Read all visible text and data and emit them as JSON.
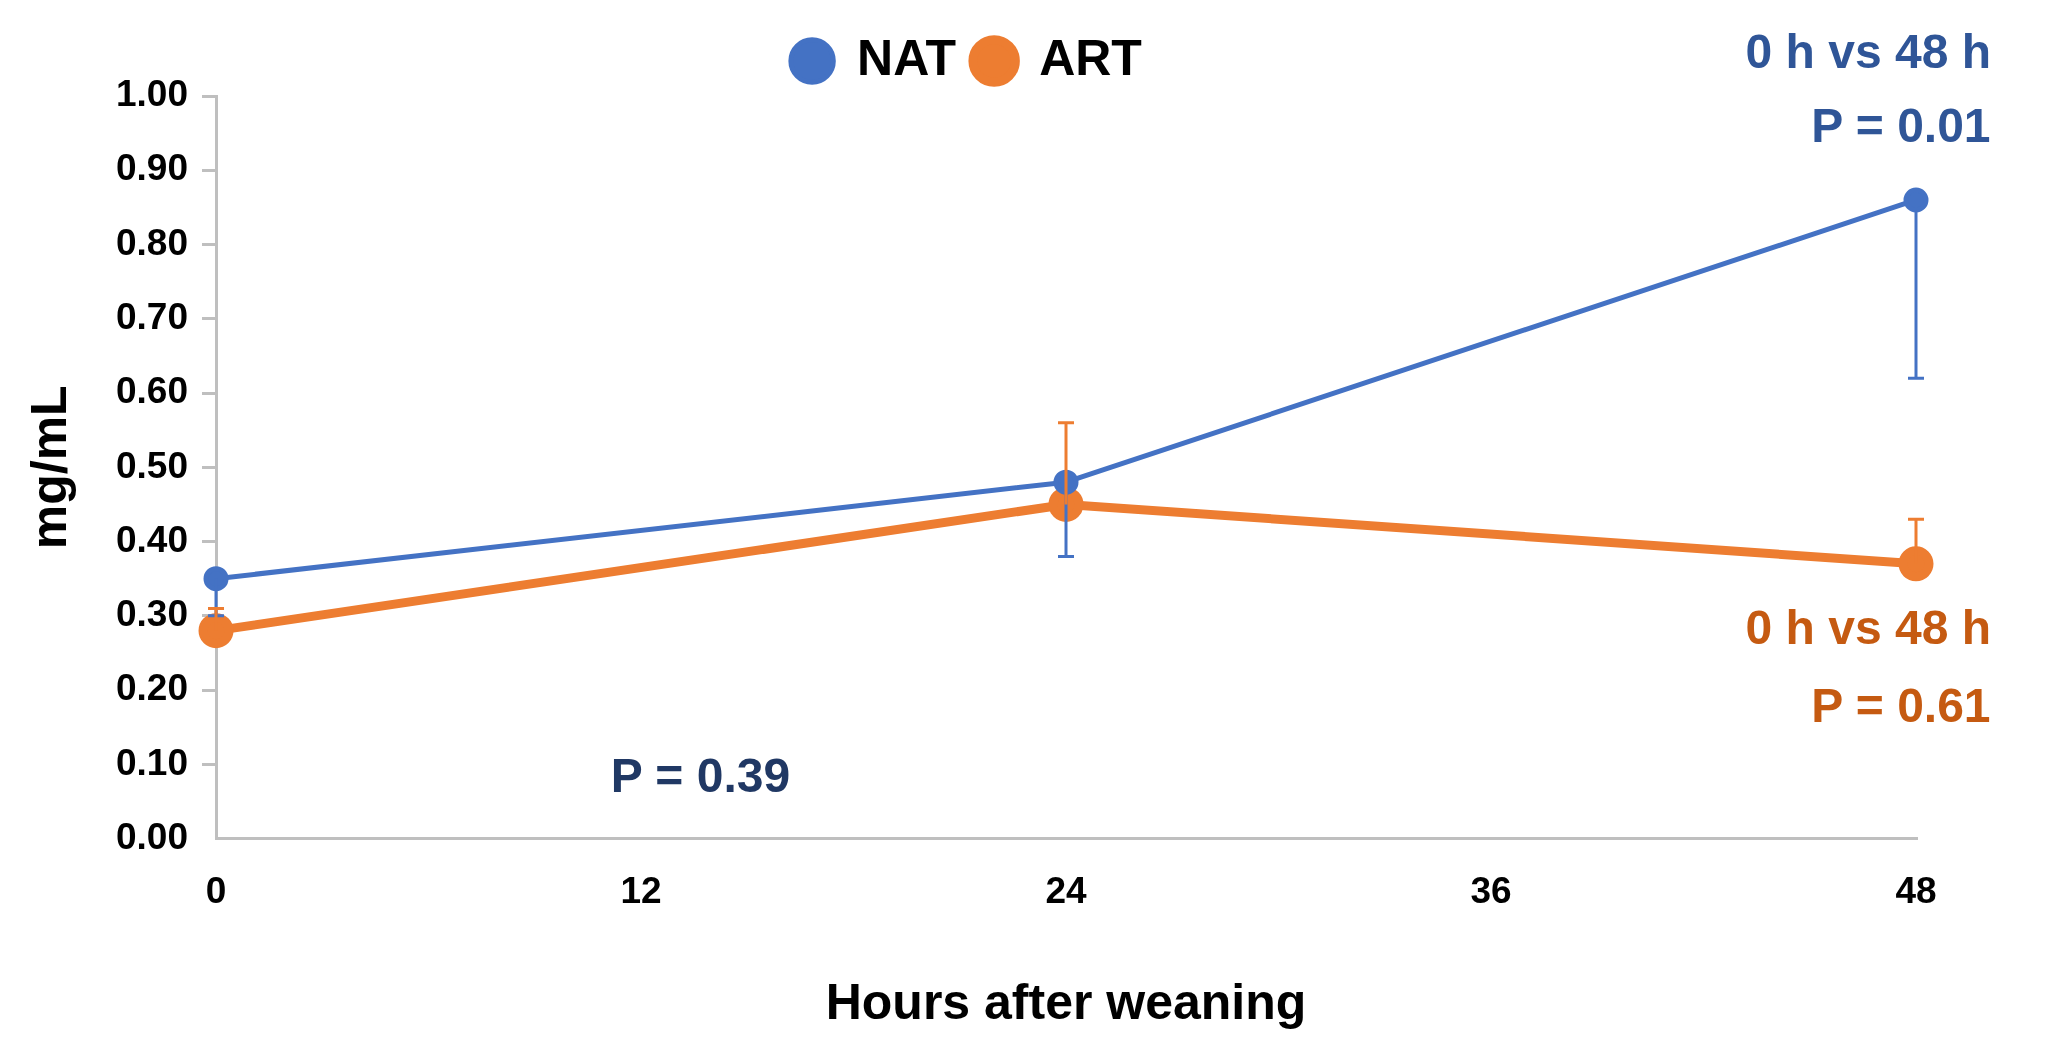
{
  "chart_data": {
    "type": "line",
    "xlabel": "Hours after weaning",
    "ylabel": "mg/mL",
    "x": [
      0,
      24,
      48
    ],
    "series": [
      {
        "name": "NAT",
        "color": "#4472c4",
        "values": [
          0.35,
          0.48,
          0.86
        ],
        "errors": [
          [
            0.3,
            0.35
          ],
          [
            0.38,
            0.48
          ],
          [
            0.62,
            0.86
          ]
        ]
      },
      {
        "name": "ART",
        "color": "#ed7d31",
        "values": [
          0.28,
          0.45,
          0.37
        ],
        "errors": [
          [
            0.28,
            0.31
          ],
          [
            0.45,
            0.56
          ],
          [
            0.37,
            0.43
          ]
        ]
      }
    ],
    "xlim": [
      0,
      48
    ],
    "xticks": [
      0,
      12,
      24,
      36,
      48
    ],
    "ylim": [
      0,
      1
    ],
    "yticks": [
      {
        "value": 0,
        "label": "0.00"
      },
      {
        "value": 0.1,
        "label": "0.10"
      },
      {
        "value": 0.2,
        "label": "0.20"
      },
      {
        "value": 0.3,
        "label": "0.30"
      },
      {
        "value": 0.4,
        "label": "0.40"
      },
      {
        "value": 0.5,
        "label": "0.50"
      },
      {
        "value": 0.6,
        "label": "0.60"
      },
      {
        "value": 0.7,
        "label": "0.70"
      },
      {
        "value": 0.8,
        "label": "0.80"
      },
      {
        "value": 0.9,
        "label": "0.90"
      },
      {
        "value": 1,
        "label": "1.00"
      }
    ],
    "grid": false,
    "legend": "top",
    "marker": "circle",
    "line_style": "solid",
    "annotations": [
      "0 h vs 48 h",
      "P = 0.01",
      "0 h vs 48 h",
      "P = 0.61",
      "P = 0.39"
    ]
  }
}
